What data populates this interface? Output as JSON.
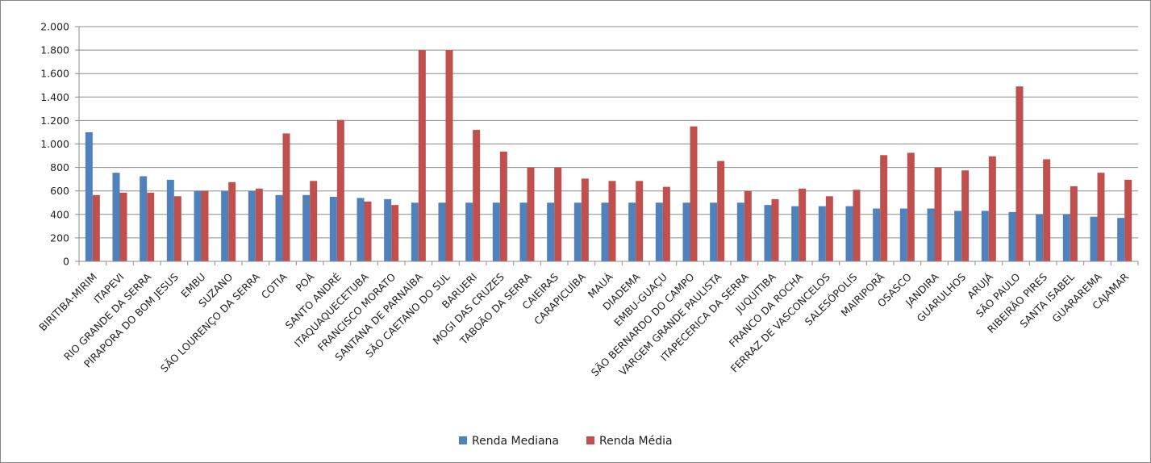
{
  "chart_data": {
    "type": "bar",
    "title": "",
    "xlabel": "",
    "ylabel": "",
    "ylim": [
      0,
      2000
    ],
    "yticks": [
      0,
      200,
      400,
      600,
      800,
      1000,
      1200,
      1400,
      1600,
      1800,
      2000
    ],
    "ytick_labels": [
      "0",
      "200",
      "400",
      "600",
      "800",
      "1.000",
      "1.200",
      "1.400",
      "1.600",
      "1.800",
      "2.000"
    ],
    "grid": true,
    "legend_position": "bottom",
    "categories": [
      "BIRITIBA-MIRIM",
      "ITAPEVI",
      "RIO GRANDE DA SERRA",
      "PIRAPORA DO BOM JESUS",
      "EMBU",
      "SUZANO",
      "SÃO LOURENÇO DA SERRA",
      "COTIA",
      "POÁ",
      "SANTO ANDRÉ",
      "ITAQUAQUECETUBA",
      "FRANCISCO MORATO",
      "SANTANA DE PARNAÍBA",
      "SÃO CAETANO DO SUL",
      "BARUERI",
      "MOGI DAS CRUZES",
      "TABOÃO DA SERRA",
      "CAIEIRAS",
      "CARAPICUÍBA",
      "MAUÁ",
      "DIADEMA",
      "EMBU-GUAÇU",
      "SÃO BERNARDO DO CAMPO",
      "VARGEM GRANDE PAULISTA",
      "ITAPECERICA DA SERRA",
      "JUQUITIBA",
      "FRANCO DA ROCHA",
      "FERRAZ DE VASCONCELOS",
      "SALESÓPOLIS",
      "MAIRIPORÃ",
      "OSASCO",
      "JANDIRA",
      "GUARULHOS",
      "ARUJÁ",
      "SÃO PAULO",
      "RIBEIRÃO PIRES",
      "SANTA ISABEL",
      "GUARAREMA",
      "CAJAMAR"
    ],
    "series": [
      {
        "name": "Renda Mediana",
        "color": "#4F81BD",
        "values": [
          1100,
          755,
          725,
          695,
          600,
          600,
          600,
          565,
          565,
          550,
          540,
          530,
          500,
          500,
          500,
          500,
          500,
          500,
          500,
          500,
          500,
          500,
          500,
          500,
          500,
          480,
          470,
          470,
          470,
          450,
          450,
          450,
          430,
          430,
          420,
          400,
          400,
          380,
          370
        ]
      },
      {
        "name": "Renda Média",
        "color": "#C0504D",
        "values": [
          565,
          585,
          585,
          555,
          600,
          675,
          620,
          1090,
          685,
          1205,
          510,
          480,
          1800,
          1800,
          1120,
          935,
          800,
          800,
          705,
          685,
          685,
          635,
          1150,
          855,
          600,
          530,
          620,
          555,
          610,
          905,
          925,
          800,
          775,
          895,
          1490,
          870,
          640,
          755,
          695
        ]
      }
    ]
  }
}
